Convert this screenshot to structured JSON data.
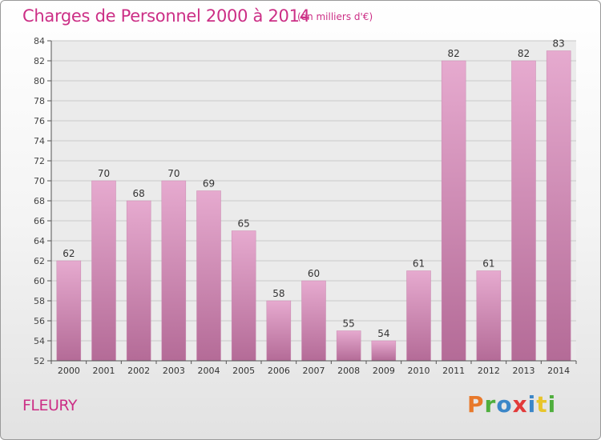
{
  "header": {
    "title": "Charges de Personnel 2000 à 2014",
    "subtitle": "(en milliers d'€)"
  },
  "footer": {
    "commune": "FLEURY",
    "brand": "Proxiti",
    "brand_letters": [
      {
        "ch": "P",
        "color": "#e8792b"
      },
      {
        "ch": "r",
        "color": "#4fae3d"
      },
      {
        "ch": "o",
        "color": "#3b86c8"
      },
      {
        "ch": "x",
        "color": "#e23a3a"
      },
      {
        "ch": "i",
        "color": "#3b86c8"
      },
      {
        "ch": "t",
        "color": "#e8c52b"
      },
      {
        "ch": "i",
        "color": "#4fae3d"
      }
    ]
  },
  "colors": {
    "title": "#cc2f86",
    "bar_light": "#e6aacf",
    "bar_dark": "#b46b97",
    "axis": "#555555",
    "grid": "#c8c8c8"
  },
  "chart_data": {
    "type": "bar",
    "title": "Charges de Personnel 2000 à 2014",
    "subtitle": "(en milliers d'€)",
    "categories": [
      "2000",
      "2001",
      "2002",
      "2003",
      "2004",
      "2005",
      "2006",
      "2007",
      "2008",
      "2009",
      "2010",
      "2011",
      "2012",
      "2013",
      "2014"
    ],
    "values": [
      62,
      70,
      68,
      70,
      69,
      65,
      58,
      60,
      55,
      54,
      61,
      82,
      61,
      82,
      83
    ],
    "ylim": [
      52,
      84
    ],
    "yticks": [
      52,
      54,
      56,
      58,
      60,
      62,
      64,
      66,
      68,
      70,
      72,
      74,
      76,
      78,
      80,
      82,
      84
    ],
    "grid": true,
    "data_labels": true
  }
}
